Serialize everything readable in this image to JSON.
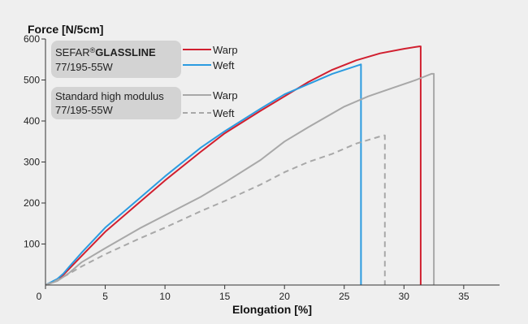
{
  "colors": {
    "background": "#efefef",
    "legend_box": "#d3d3d3",
    "warp_glassline": "#d11f2f",
    "weft_glassline": "#2b9be0",
    "standard": "#a8a8a8"
  },
  "chart_data": {
    "type": "line",
    "ylabel": "Force [N/5cm]",
    "xlabel": "Elongation [%]",
    "xlim": [
      0,
      38
    ],
    "ylim": [
      0,
      600
    ],
    "x_ticks": [
      0,
      5,
      10,
      15,
      20,
      25,
      30,
      35
    ],
    "y_ticks": [
      100,
      200,
      300,
      400,
      500,
      600
    ],
    "grid": false,
    "legend_position": "top-left",
    "legend_groups": [
      {
        "brand": "SEFAR",
        "mark": "®",
        "product": "GLASSLINE",
        "subtitle": "77/195-55W",
        "entries": [
          "Warp",
          "Weft"
        ]
      },
      {
        "title": "Standard high modulus",
        "subtitle": "77/195-55W",
        "entries": [
          "Warp",
          "Weft"
        ]
      }
    ],
    "series": [
      {
        "name": "Warp",
        "group": "SEFAR GLASSLINE",
        "color": "#d11f2f",
        "dash": "solid",
        "break_x": 31.4,
        "points": [
          [
            0,
            0
          ],
          [
            1,
            12
          ],
          [
            1.5,
            25
          ],
          [
            2,
            40
          ],
          [
            3,
            70
          ],
          [
            5,
            130
          ],
          [
            7,
            180
          ],
          [
            10,
            255
          ],
          [
            13,
            325
          ],
          [
            15,
            370
          ],
          [
            18,
            425
          ],
          [
            20,
            460
          ],
          [
            22,
            495
          ],
          [
            24,
            525
          ],
          [
            26,
            548
          ],
          [
            28,
            565
          ],
          [
            30,
            576
          ],
          [
            31.3,
            582
          ]
        ]
      },
      {
        "name": "Weft",
        "group": "SEFAR GLASSLINE",
        "color": "#2b9be0",
        "dash": "solid",
        "break_x": 26.4,
        "points": [
          [
            0,
            0
          ],
          [
            1,
            15
          ],
          [
            1.5,
            28
          ],
          [
            2,
            45
          ],
          [
            3,
            78
          ],
          [
            5,
            140
          ],
          [
            7,
            190
          ],
          [
            10,
            265
          ],
          [
            13,
            335
          ],
          [
            15,
            375
          ],
          [
            18,
            430
          ],
          [
            20,
            465
          ],
          [
            22,
            490
          ],
          [
            24,
            515
          ],
          [
            26.4,
            538
          ]
        ]
      },
      {
        "name": "Warp",
        "group": "Standard high modulus",
        "color": "#a8a8a8",
        "dash": "solid",
        "break_x": 32.5,
        "points": [
          [
            0,
            0
          ],
          [
            1,
            10
          ],
          [
            2,
            30
          ],
          [
            3,
            55
          ],
          [
            5,
            90
          ],
          [
            8,
            140
          ],
          [
            10,
            170
          ],
          [
            13,
            215
          ],
          [
            15,
            250
          ],
          [
            18,
            305
          ],
          [
            20,
            350
          ],
          [
            22,
            385
          ],
          [
            25,
            435
          ],
          [
            27,
            460
          ],
          [
            29,
            480
          ],
          [
            31,
            500
          ],
          [
            32.3,
            515
          ]
        ]
      },
      {
        "name": "Weft",
        "group": "Standard high modulus",
        "color": "#a8a8a8",
        "dash": "dashed",
        "break_x": 28.4,
        "points": [
          [
            0,
            0
          ],
          [
            1,
            12
          ],
          [
            2,
            28
          ],
          [
            3,
            45
          ],
          [
            5,
            75
          ],
          [
            8,
            115
          ],
          [
            10,
            140
          ],
          [
            13,
            180
          ],
          [
            15,
            205
          ],
          [
            18,
            245
          ],
          [
            20,
            275
          ],
          [
            22,
            300
          ],
          [
            24,
            320
          ],
          [
            26,
            345
          ],
          [
            27.5,
            358
          ],
          [
            28.3,
            365
          ]
        ]
      }
    ]
  }
}
